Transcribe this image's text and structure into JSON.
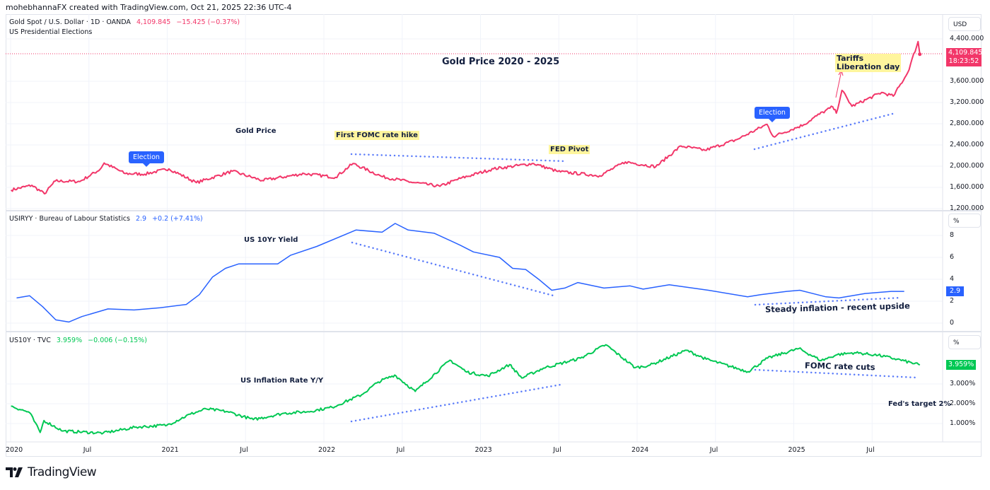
{
  "header": {
    "credit": "mohebhannaFX created with TradingView.com, Oct 21, 2025 22:36 UTC-4"
  },
  "panes": [
    {
      "symbol": "Gold Spot / U.S. Dollar · 1D · OANDA",
      "last": "4,109.845",
      "change": "−15.425 (−0.37%)",
      "indicator": "US Presidential Elections",
      "unit": "USD",
      "price_tag": "4,109.845",
      "countdown": "18:23:52",
      "color": "#f23669",
      "ticks": [
        "4,400.000",
        "3,600.000",
        "3,200.000",
        "2,800.000",
        "2,400.000",
        "2,000.000",
        "1,600.000",
        "1,200.000"
      ]
    },
    {
      "symbol": "USIRYY · Bureau of Labour Statistics",
      "last": "2.9",
      "change": "+0.2 (+7.41%)",
      "unit": "%",
      "price_tag": "2.9",
      "color": "#2962ff",
      "ticks": [
        "8",
        "6",
        "4",
        "2",
        "0"
      ]
    },
    {
      "symbol": "US10Y · TVC",
      "last": "3.959%",
      "change": "−0.006 (−0.15%)",
      "unit": "%",
      "price_tag": "3.959%",
      "color": "#00c853",
      "ticks": [
        "3.000%",
        "2.000%",
        "1.000%"
      ]
    }
  ],
  "annotations": {
    "title": "Gold Price 2020 - 2025",
    "gold_label": "Gold Price",
    "fomc_hike": "First FOMC rate hike",
    "fed_pivot": "FED Pivot",
    "election": "Election",
    "tariffs_1": "Tariffs",
    "tariffs_2": "Liberation day",
    "yield_label": "US 10Yr Yield",
    "steady": "Steady inflation - recent upside",
    "inflation_label": "US Inflation Rate Y/Y",
    "fomc_cuts": "FOMC rate cuts",
    "fed_target": "Fed's target 2%"
  },
  "time_axis": [
    "2020",
    "Jul",
    "2021",
    "Jul",
    "2022",
    "Jul",
    "2023",
    "Jul",
    "2024",
    "Jul",
    "2025",
    "Jul"
  ],
  "brand": "TradingView",
  "chart_data": [
    {
      "type": "line",
      "name": "Gold Spot / U.S. Dollar",
      "ylim": [
        1200,
        4400
      ],
      "color": "#f23669",
      "x": [
        "2020-01-02",
        "2020-02-20",
        "2020-03-19",
        "2020-04-14",
        "2020-06-10",
        "2020-07-27",
        "2020-08-06",
        "2020-09-25",
        "2020-11-09",
        "2021-01-05",
        "2021-03-08",
        "2021-05-31",
        "2021-08-09",
        "2021-11-16",
        "2022-01-28",
        "2022-03-08",
        "2022-05-16",
        "2022-07-21",
        "2022-09-28",
        "2022-11-15",
        "2023-02-01",
        "2023-05-03",
        "2023-06-29",
        "2023-10-05",
        "2023-12-04",
        "2024-02-14",
        "2024-04-12",
        "2024-06-07",
        "2024-08-20",
        "2024-10-30",
        "2024-11-14",
        "2025-01-24",
        "2025-02-24",
        "2025-03-31",
        "2025-04-09",
        "2025-04-22",
        "2025-05-15",
        "2025-07-23",
        "2025-08-20",
        "2025-09-23",
        "2025-10-17",
        "2025-10-21"
      ],
      "y": [
        1550,
        1640,
        1480,
        1720,
        1710,
        1940,
        2060,
        1860,
        1850,
        1950,
        1690,
        1905,
        1730,
        1860,
        1790,
        2050,
        1800,
        1700,
        1620,
        1770,
        1950,
        2050,
        1900,
        1820,
        2080,
        1990,
        2380,
        2300,
        2500,
        2790,
        2560,
        2780,
        2950,
        3120,
        3000,
        3430,
        3130,
        3390,
        3320,
        3760,
        4350,
        4109.845
      ]
    },
    {
      "type": "line",
      "name": "USIRYY",
      "ylim": [
        0,
        9
      ],
      "color": "#2962ff",
      "x": [
        "2020-01",
        "2020-02",
        "2020-03",
        "2020-04",
        "2020-05",
        "2020-06",
        "2020-08",
        "2020-10",
        "2020-12",
        "2021-02",
        "2021-03",
        "2021-04",
        "2021-05",
        "2021-06",
        "2021-09",
        "2021-10",
        "2021-12",
        "2022-03",
        "2022-05",
        "2022-06",
        "2022-07",
        "2022-09",
        "2022-11",
        "2022-12",
        "2023-02",
        "2023-03",
        "2023-04",
        "2023-05",
        "2023-06",
        "2023-07",
        "2023-08",
        "2023-10",
        "2023-12",
        "2024-01",
        "2024-03",
        "2024-06",
        "2024-09",
        "2024-10",
        "2024-12",
        "2025-01",
        "2025-03",
        "2025-04",
        "2025-06",
        "2025-08",
        "2025-09"
      ],
      "y": [
        2.3,
        2.5,
        1.5,
        0.3,
        0.1,
        0.6,
        1.3,
        1.2,
        1.4,
        1.7,
        2.6,
        4.2,
        5.0,
        5.4,
        5.4,
        6.2,
        7.0,
        8.5,
        8.3,
        9.1,
        8.5,
        8.2,
        7.1,
        6.5,
        6.0,
        5.0,
        4.9,
        4.0,
        3.0,
        3.2,
        3.7,
        3.2,
        3.4,
        3.1,
        3.5,
        3.0,
        2.4,
        2.6,
        2.9,
        3.0,
        2.4,
        2.3,
        2.7,
        2.9,
        2.9
      ]
    },
    {
      "type": "line",
      "name": "US10Y",
      "ylim": [
        0.5,
        5
      ],
      "color": "#00c853",
      "x": [
        "2020-01-02",
        "2020-02-15",
        "2020-03-09",
        "2020-03-18",
        "2020-05-01",
        "2020-08-04",
        "2020-10-20",
        "2020-12-31",
        "2021-02-25",
        "2021-03-31",
        "2021-05-20",
        "2021-07-19",
        "2021-09-30",
        "2021-11-25",
        "2022-01-20",
        "2022-03-28",
        "2022-05-06",
        "2022-06-14",
        "2022-08-01",
        "2022-10-21",
        "2022-11-30",
        "2023-01-18",
        "2023-03-08",
        "2023-04-06",
        "2023-05-26",
        "2023-08-21",
        "2023-10-19",
        "2023-12-27",
        "2024-01-31",
        "2024-04-25",
        "2024-06-10",
        "2024-09-16",
        "2024-10-31",
        "2025-01-13",
        "2025-03-04",
        "2025-04-11",
        "2025-05-21",
        "2025-07-15",
        "2025-08-29",
        "2025-10-21"
      ],
      "y": [
        1.88,
        1.55,
        0.55,
        1.15,
        0.62,
        0.52,
        0.82,
        0.92,
        1.48,
        1.74,
        1.6,
        1.2,
        1.52,
        1.6,
        1.82,
        2.45,
        3.1,
        3.45,
        2.62,
        4.2,
        3.6,
        3.4,
        3.98,
        3.3,
        3.8,
        4.3,
        4.98,
        3.82,
        3.95,
        4.7,
        4.25,
        3.62,
        4.3,
        4.79,
        4.18,
        4.48,
        4.58,
        4.45,
        4.25,
        3.959
      ]
    }
  ]
}
